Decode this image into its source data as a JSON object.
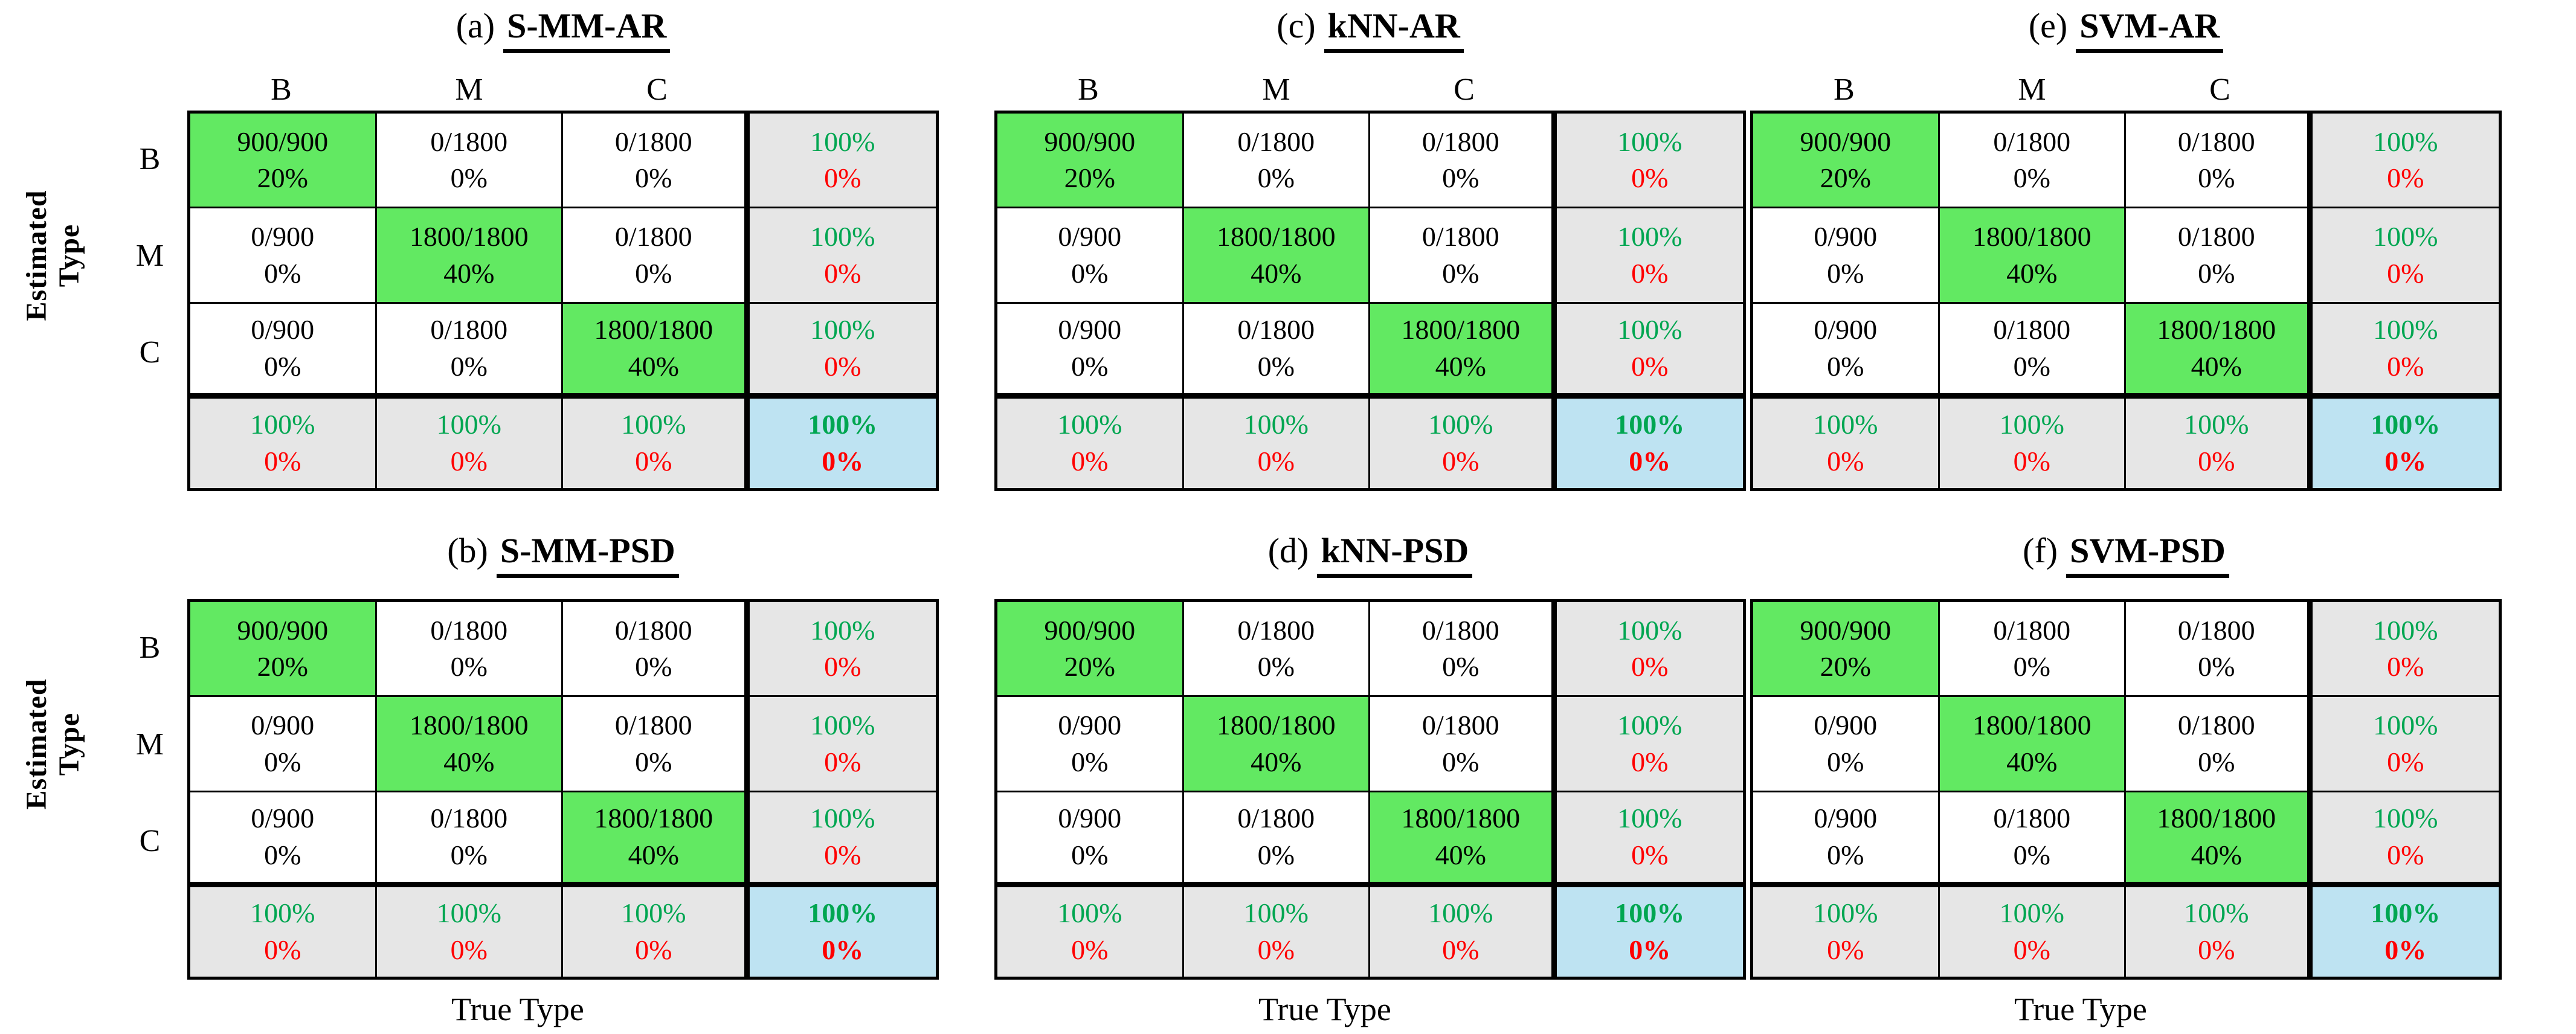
{
  "figure": {
    "y_axis_label_line1": "Estimated",
    "y_axis_label_line2": "Type",
    "x_axis_label": "True Type"
  },
  "colors": {
    "diag_bg": "#62E962",
    "summary_bg": "#E6E6E6",
    "total_bg": "#BEE3F2",
    "positive_text": "#00A651",
    "negative_text": "#FF0000",
    "border": "#000000"
  },
  "matrix": {
    "col_headers": [
      "B",
      "M",
      "C"
    ],
    "row_labels": [
      "B",
      "M",
      "C"
    ],
    "rows": [
      [
        {
          "top": "900/900",
          "bottom": "20%",
          "type": "diag"
        },
        {
          "top": "0/1800",
          "bottom": "0%",
          "type": "off"
        },
        {
          "top": "0/1800",
          "bottom": "0%",
          "type": "off"
        },
        {
          "top": "100%",
          "bottom": "0%",
          "type": "sum"
        }
      ],
      [
        {
          "top": "0/900",
          "bottom": "0%",
          "type": "off"
        },
        {
          "top": "1800/1800",
          "bottom": "40%",
          "type": "diag"
        },
        {
          "top": "0/1800",
          "bottom": "0%",
          "type": "off"
        },
        {
          "top": "100%",
          "bottom": "0%",
          "type": "sum"
        }
      ],
      [
        {
          "top": "0/900",
          "bottom": "0%",
          "type": "off"
        },
        {
          "top": "0/1800",
          "bottom": "0%",
          "type": "off"
        },
        {
          "top": "1800/1800",
          "bottom": "40%",
          "type": "diag"
        },
        {
          "top": "100%",
          "bottom": "0%",
          "type": "sum"
        }
      ],
      [
        {
          "top": "100%",
          "bottom": "0%",
          "type": "sum"
        },
        {
          "top": "100%",
          "bottom": "0%",
          "type": "sum"
        },
        {
          "top": "100%",
          "bottom": "0%",
          "type": "sum"
        },
        {
          "top": "100%",
          "bottom": "0%",
          "type": "tot"
        }
      ]
    ]
  },
  "panels": [
    {
      "prefix": "(a)",
      "title": "S-MM-AR",
      "grid_row": 0,
      "grid_col": 0
    },
    {
      "prefix": "(b)",
      "title": "S-MM-PSD",
      "grid_row": 1,
      "grid_col": 0
    },
    {
      "prefix": "(c)",
      "title": "kNN-AR",
      "grid_row": 0,
      "grid_col": 1
    },
    {
      "prefix": "(d)",
      "title": "kNN-PSD",
      "grid_row": 1,
      "grid_col": 1
    },
    {
      "prefix": "(e)",
      "title": "SVM-AR",
      "grid_row": 0,
      "grid_col": 2
    },
    {
      "prefix": "(f)",
      "title": "SVM-PSD",
      "grid_row": 1,
      "grid_col": 2
    }
  ],
  "chart_data": [
    {
      "type": "heatmap",
      "title": "(a) S-MM-AR",
      "xlabel": "True Type",
      "ylabel": "Estimated Type",
      "x_categories": [
        "B",
        "M",
        "C"
      ],
      "y_categories": [
        "B",
        "M",
        "C"
      ],
      "cell_counts": [
        [
          "900/900",
          "0/1800",
          "0/1800"
        ],
        [
          "0/900",
          "1800/1800",
          "0/1800"
        ],
        [
          "0/900",
          "0/1800",
          "1800/1800"
        ]
      ],
      "cell_percent_of_total": [
        [
          "20%",
          "0%",
          "0%"
        ],
        [
          "0%",
          "40%",
          "0%"
        ],
        [
          "0%",
          "0%",
          "40%"
        ]
      ],
      "row_summary_correct": [
        "100%",
        "100%",
        "100%"
      ],
      "row_summary_error": [
        "0%",
        "0%",
        "0%"
      ],
      "col_summary_correct": [
        "100%",
        "100%",
        "100%"
      ],
      "col_summary_error": [
        "0%",
        "0%",
        "0%"
      ],
      "overall_correct": "100%",
      "overall_error": "0%"
    },
    {
      "type": "heatmap",
      "title": "(b) S-MM-PSD",
      "xlabel": "True Type",
      "ylabel": "Estimated Type",
      "x_categories": [
        "B",
        "M",
        "C"
      ],
      "y_categories": [
        "B",
        "M",
        "C"
      ],
      "cell_counts": [
        [
          "900/900",
          "0/1800",
          "0/1800"
        ],
        [
          "0/900",
          "1800/1800",
          "0/1800"
        ],
        [
          "0/900",
          "0/1800",
          "1800/1800"
        ]
      ],
      "cell_percent_of_total": [
        [
          "20%",
          "0%",
          "0%"
        ],
        [
          "0%",
          "40%",
          "0%"
        ],
        [
          "0%",
          "0%",
          "40%"
        ]
      ],
      "row_summary_correct": [
        "100%",
        "100%",
        "100%"
      ],
      "row_summary_error": [
        "0%",
        "0%",
        "0%"
      ],
      "col_summary_correct": [
        "100%",
        "100%",
        "100%"
      ],
      "col_summary_error": [
        "0%",
        "0%",
        "0%"
      ],
      "overall_correct": "100%",
      "overall_error": "0%"
    },
    {
      "type": "heatmap",
      "title": "(c) kNN-AR",
      "xlabel": "True Type",
      "ylabel": "Estimated Type",
      "x_categories": [
        "B",
        "M",
        "C"
      ],
      "y_categories": [
        "B",
        "M",
        "C"
      ],
      "cell_counts": [
        [
          "900/900",
          "0/1800",
          "0/1800"
        ],
        [
          "0/900",
          "1800/1800",
          "0/1800"
        ],
        [
          "0/900",
          "0/1800",
          "1800/1800"
        ]
      ],
      "cell_percent_of_total": [
        [
          "20%",
          "0%",
          "0%"
        ],
        [
          "0%",
          "40%",
          "0%"
        ],
        [
          "0%",
          "0%",
          "40%"
        ]
      ],
      "row_summary_correct": [
        "100%",
        "100%",
        "100%"
      ],
      "row_summary_error": [
        "0%",
        "0%",
        "0%"
      ],
      "col_summary_correct": [
        "100%",
        "100%",
        "100%"
      ],
      "col_summary_error": [
        "0%",
        "0%",
        "0%"
      ],
      "overall_correct": "100%",
      "overall_error": "0%"
    },
    {
      "type": "heatmap",
      "title": "(d) kNN-PSD",
      "xlabel": "True Type",
      "ylabel": "Estimated Type",
      "x_categories": [
        "B",
        "M",
        "C"
      ],
      "y_categories": [
        "B",
        "M",
        "C"
      ],
      "cell_counts": [
        [
          "900/900",
          "0/1800",
          "0/1800"
        ],
        [
          "0/900",
          "1800/1800",
          "0/1800"
        ],
        [
          "0/900",
          "0/1800",
          "1800/1800"
        ]
      ],
      "cell_percent_of_total": [
        [
          "20%",
          "0%",
          "0%"
        ],
        [
          "0%",
          "40%",
          "0%"
        ],
        [
          "0%",
          "0%",
          "40%"
        ]
      ],
      "row_summary_correct": [
        "100%",
        "100%",
        "100%"
      ],
      "row_summary_error": [
        "0%",
        "0%",
        "0%"
      ],
      "col_summary_correct": [
        "100%",
        "100%",
        "100%"
      ],
      "col_summary_error": [
        "0%",
        "0%",
        "0%"
      ],
      "overall_correct": "100%",
      "overall_error": "0%"
    },
    {
      "type": "heatmap",
      "title": "(e) SVM-AR",
      "xlabel": "True Type",
      "ylabel": "Estimated Type",
      "x_categories": [
        "B",
        "M",
        "C"
      ],
      "y_categories": [
        "B",
        "M",
        "C"
      ],
      "cell_counts": [
        [
          "900/900",
          "0/1800",
          "0/1800"
        ],
        [
          "0/900",
          "1800/1800",
          "0/1800"
        ],
        [
          "0/900",
          "0/1800",
          "1800/1800"
        ]
      ],
      "cell_percent_of_total": [
        [
          "20%",
          "0%",
          "0%"
        ],
        [
          "0%",
          "40%",
          "0%"
        ],
        [
          "0%",
          "0%",
          "40%"
        ]
      ],
      "row_summary_correct": [
        "100%",
        "100%",
        "100%"
      ],
      "row_summary_error": [
        "0%",
        "0%",
        "0%"
      ],
      "col_summary_correct": [
        "100%",
        "100%",
        "100%"
      ],
      "col_summary_error": [
        "0%",
        "0%",
        "0%"
      ],
      "overall_correct": "100%",
      "overall_error": "0%"
    },
    {
      "type": "heatmap",
      "title": "(f) SVM-PSD",
      "xlabel": "True Type",
      "ylabel": "Estimated Type",
      "x_categories": [
        "B",
        "M",
        "C"
      ],
      "y_categories": [
        "B",
        "M",
        "C"
      ],
      "cell_counts": [
        [
          "900/900",
          "0/1800",
          "0/1800"
        ],
        [
          "0/900",
          "1800/1800",
          "0/1800"
        ],
        [
          "0/900",
          "0/1800",
          "1800/1800"
        ]
      ],
      "cell_percent_of_total": [
        [
          "20%",
          "0%",
          "0%"
        ],
        [
          "0%",
          "40%",
          "0%"
        ],
        [
          "0%",
          "0%",
          "40%"
        ]
      ],
      "row_summary_correct": [
        "100%",
        "100%",
        "100%"
      ],
      "row_summary_error": [
        "0%",
        "0%",
        "0%"
      ],
      "col_summary_correct": [
        "100%",
        "100%",
        "100%"
      ],
      "col_summary_error": [
        "0%",
        "0%",
        "0%"
      ],
      "overall_correct": "100%",
      "overall_error": "0%"
    }
  ]
}
